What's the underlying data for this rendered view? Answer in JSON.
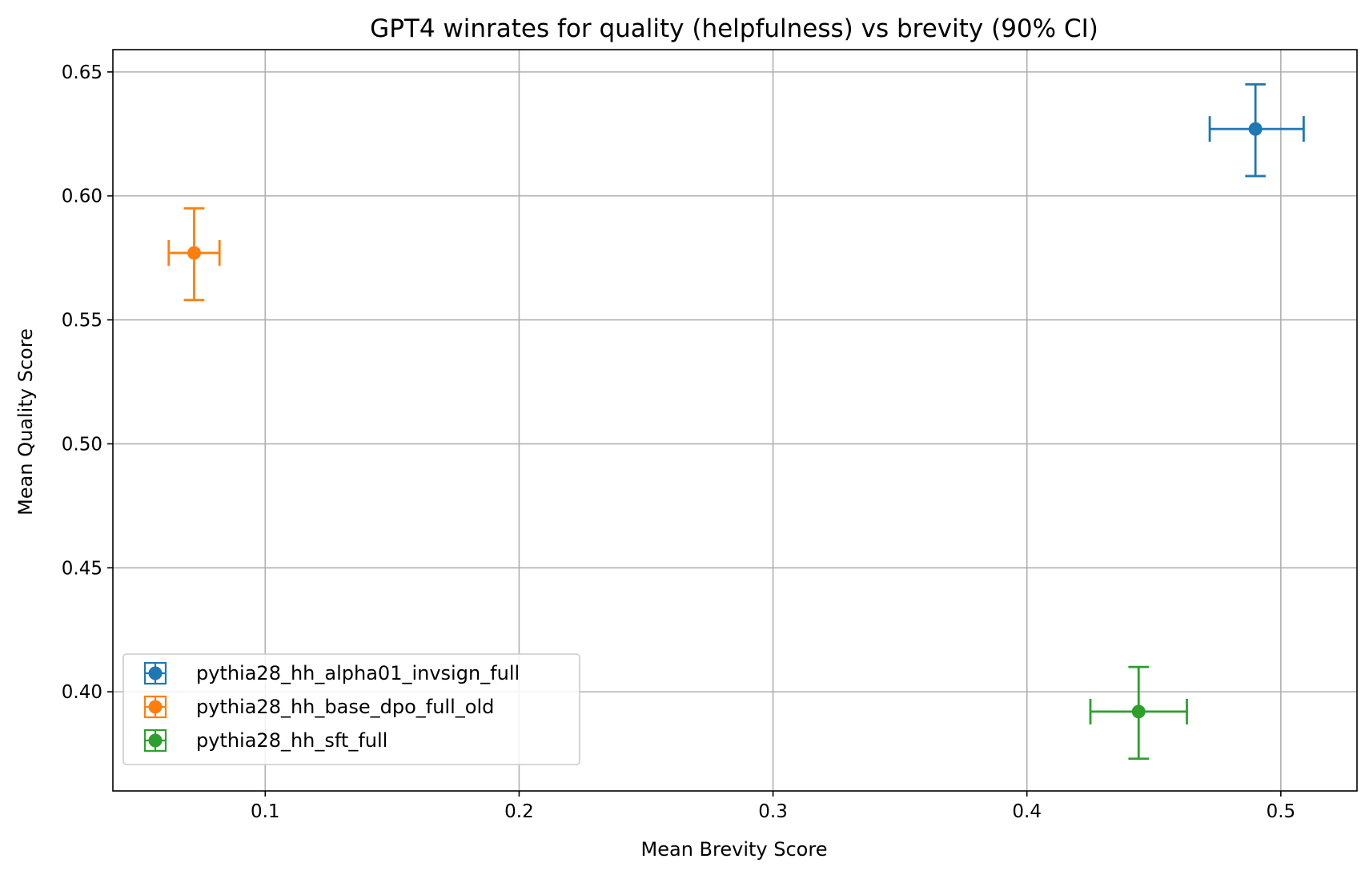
{
  "chart_data": {
    "type": "scatter",
    "title": "GPT4 winrates for quality (helpfulness) vs brevity (90% CI)",
    "xlabel": "Mean Brevity Score",
    "ylabel": "Mean Quality Score",
    "xlim": [
      0.04,
      0.53
    ],
    "ylim": [
      0.36,
      0.659
    ],
    "xticks": [
      {
        "value": 0.1,
        "label": "0.1"
      },
      {
        "value": 0.2,
        "label": "0.2"
      },
      {
        "value": 0.3,
        "label": "0.3"
      },
      {
        "value": 0.4,
        "label": "0.4"
      },
      {
        "value": 0.5,
        "label": "0.5"
      }
    ],
    "yticks": [
      {
        "value": 0.4,
        "label": "0.40"
      },
      {
        "value": 0.45,
        "label": "0.45"
      },
      {
        "value": 0.5,
        "label": "0.50"
      },
      {
        "value": 0.55,
        "label": "0.55"
      },
      {
        "value": 0.6,
        "label": "0.60"
      },
      {
        "value": 0.65,
        "label": "0.65"
      }
    ],
    "grid": true,
    "legend_position": "lower-left",
    "series": [
      {
        "name": "pythia28_hh_alpha01_invsign_full",
        "color": "#1f77b4",
        "x": 0.49,
        "y": 0.627,
        "x_err": [
          0.472,
          0.509
        ],
        "y_err": [
          0.608,
          0.645
        ]
      },
      {
        "name": "pythia28_hh_base_dpo_full_old",
        "color": "#ff7f0e",
        "x": 0.072,
        "y": 0.577,
        "x_err": [
          0.062,
          0.082
        ],
        "y_err": [
          0.558,
          0.595
        ]
      },
      {
        "name": "pythia28_hh_sft_full",
        "color": "#2ca02c",
        "x": 0.444,
        "y": 0.392,
        "x_err": [
          0.425,
          0.463
        ],
        "y_err": [
          0.373,
          0.41
        ]
      }
    ]
  }
}
